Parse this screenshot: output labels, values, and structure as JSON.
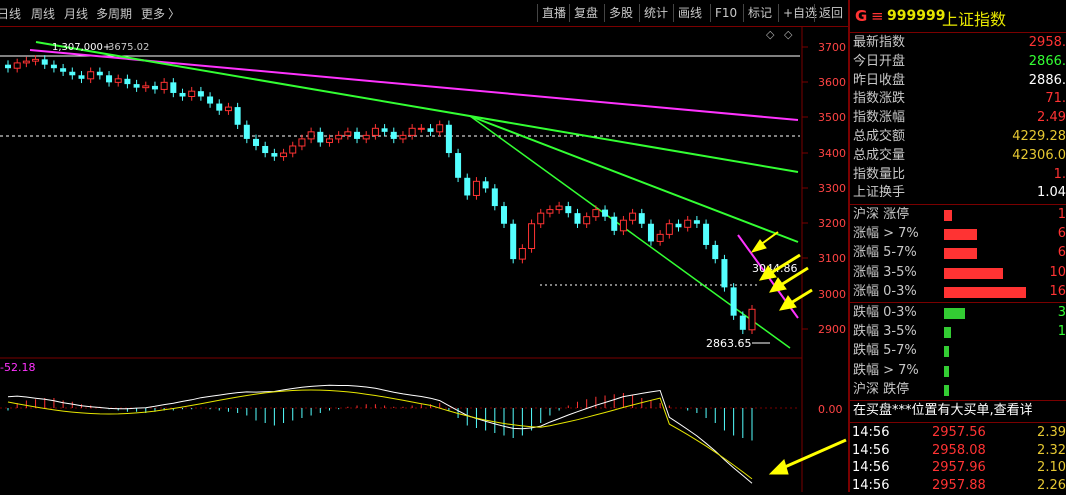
{
  "toolbar": {
    "left_tabs": [
      "日线",
      "周线",
      "月线",
      "多周期",
      "更多"
    ],
    "more_chevron": "〉",
    "right_buttons": [
      "直播",
      "复盘",
      "多股",
      "统计",
      "画线",
      "F10",
      "标记",
      "+自选",
      "返回"
    ]
  },
  "chart": {
    "high_label": "3675.02",
    "overlay_label": "1,307,000+",
    "low_label": "2863.65",
    "mid_label": "3044.86",
    "macd_label": "-52.18",
    "y_axis": [
      "3700",
      "3600",
      "3500",
      "3400",
      "3300",
      "3200",
      "3100",
      "3000",
      "2900"
    ],
    "macd_axis": "0.00"
  },
  "panel": {
    "logo": "G",
    "menu_icon": "≡",
    "code": "999999",
    "name": "上证指数",
    "quotes": [
      {
        "label": "最新指数",
        "value": "2958.",
        "color": "#ff3333"
      },
      {
        "label": "今日开盘",
        "value": "2866.",
        "color": "#33ff33"
      },
      {
        "label": "昨日收盘",
        "value": "2886.",
        "color": "#ffffff"
      },
      {
        "label": "指数涨跌",
        "value": "71.",
        "color": "#ff3333"
      },
      {
        "label": "指数涨幅",
        "value": "2.49",
        "color": "#ff3333"
      },
      {
        "label": "总成交额",
        "value": "4229.28",
        "color": "#e6c832"
      },
      {
        "label": "总成交量",
        "value": "42306.0",
        "color": "#e6c832"
      },
      {
        "label": "指数量比",
        "value": "1.",
        "color": "#ff3333"
      },
      {
        "label": "上证换手",
        "value": "1.04",
        "color": "#ffffff"
      }
    ],
    "up_stats": [
      {
        "label": "沪深 涨停",
        "count": "1",
        "bar": 0.1
      },
      {
        "label": "涨幅 > 7%",
        "count": "6",
        "bar": 0.4
      },
      {
        "label": "涨幅 5-7%",
        "count": "6",
        "bar": 0.4
      },
      {
        "label": "涨幅 3-5%",
        "count": "10",
        "bar": 0.72
      },
      {
        "label": "涨幅 0-3%",
        "count": "16",
        "bar": 1.0
      }
    ],
    "down_stats": [
      {
        "label": "跌幅 0-3%",
        "count": "3",
        "bar": 0.26
      },
      {
        "label": "跌幅 3-5%",
        "count": "1",
        "bar": 0.08
      },
      {
        "label": "跌幅 5-7%",
        "count": "",
        "bar": 0.04
      },
      {
        "label": "跌幅 > 7%",
        "count": "",
        "bar": 0.04
      },
      {
        "label": "沪深 跌停",
        "count": "",
        "bar": 0.04
      }
    ],
    "notice": "在买盘***位置有大买单,查看详",
    "ticks": [
      {
        "time": "14:56",
        "price": "2957.56",
        "vol": "2.39"
      },
      {
        "time": "14:56",
        "price": "2958.08",
        "vol": "2.32"
      },
      {
        "time": "14:56",
        "price": "2957.96",
        "vol": "2.10"
      },
      {
        "time": "14:56",
        "price": "2957.88",
        "vol": "2.26"
      }
    ]
  },
  "colors": {
    "up": "#ff3333",
    "down": "#54ffff",
    "trend_magenta": "#ff33ff",
    "trend_green": "#33ff33",
    "arrow": "#ffff00",
    "accent_red": "#7a0000"
  }
}
